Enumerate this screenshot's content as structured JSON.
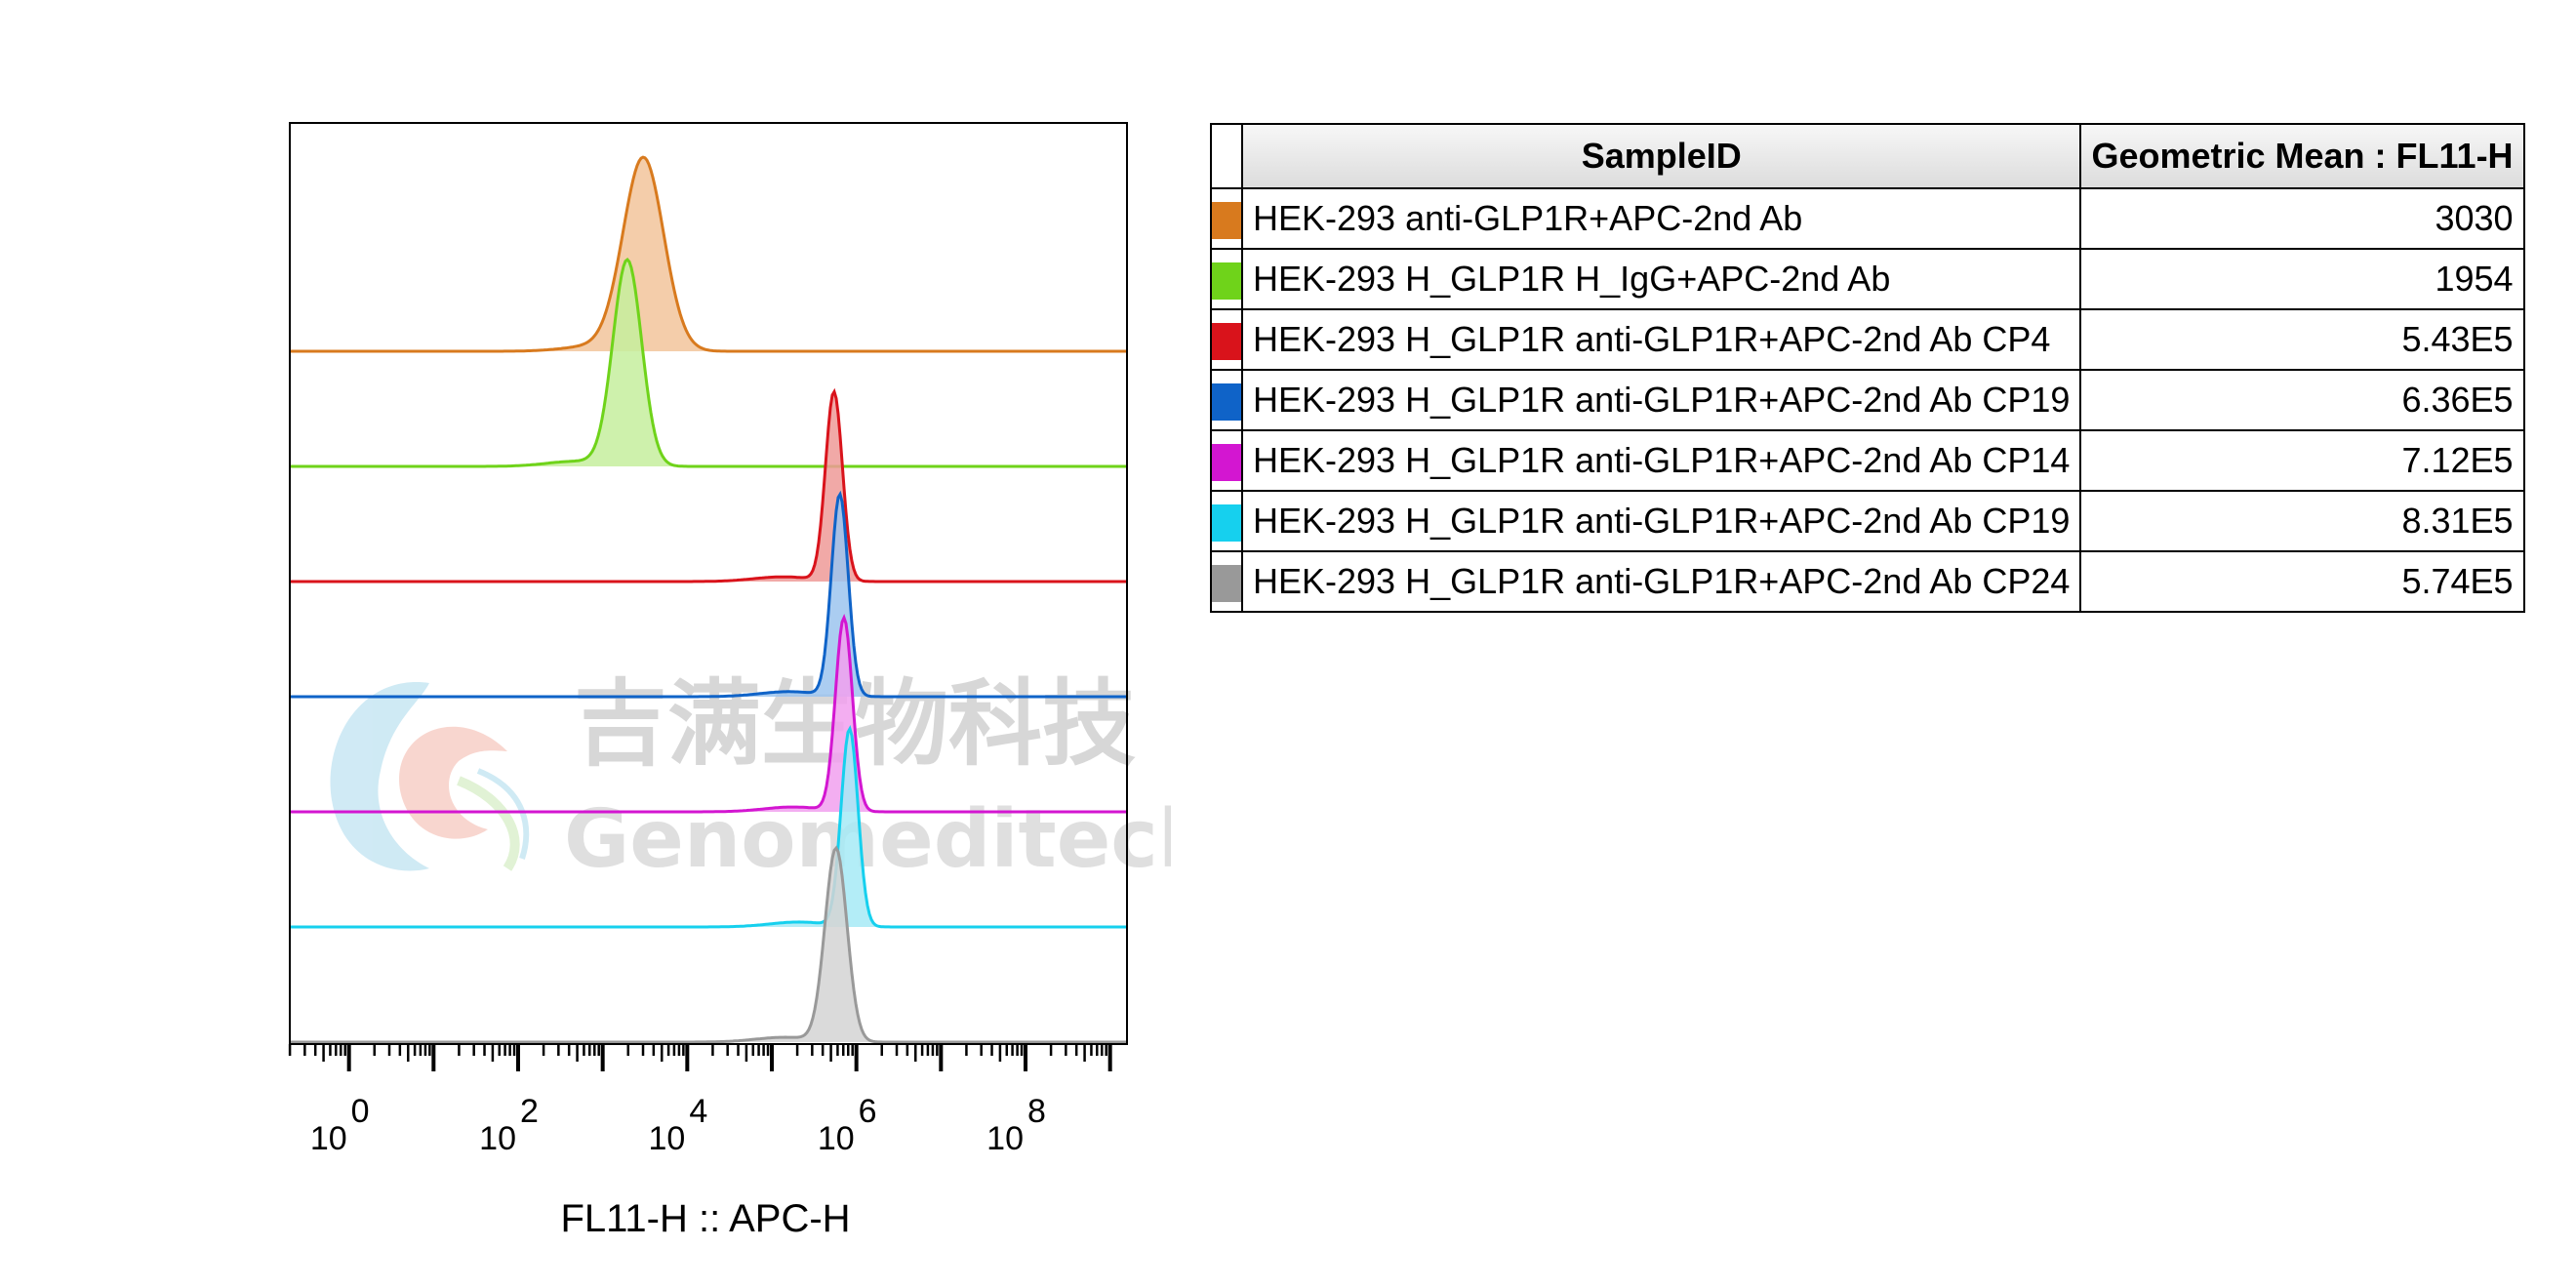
{
  "chart_data": {
    "type": "histogram",
    "xlabel": "FL11-H :: APC-H",
    "x_scale": "log",
    "x_ticks": [
      {
        "base": "10",
        "exp": "0",
        "value": 1
      },
      {
        "base": "10",
        "exp": "2",
        "value": 100
      },
      {
        "base": "10",
        "exp": "4",
        "value": 10000
      },
      {
        "base": "10",
        "exp": "6",
        "value": 1000000
      },
      {
        "base": "10",
        "exp": "8",
        "value": 100000000
      }
    ],
    "series": [
      {
        "name": "HEK-293 anti-GLP1R+APC-2nd Ab",
        "color": "#d87a1e",
        "fill": "#f2c49b",
        "peak": 3030,
        "spread": 0.24,
        "height": 0.92
      },
      {
        "name": "HEK-293 H_GLP1R H_IgG+APC-2nd Ab",
        "color": "#6fd31a",
        "fill": "#c6ef9e",
        "peak": 1954,
        "spread": 0.17,
        "height": 0.98
      },
      {
        "name": "HEK-293 H_GLP1R anti-GLP1R+APC-2nd Ab CP4",
        "color": "#d9131b",
        "fill": "#ee9a98",
        "peak": 543000,
        "spread": 0.1,
        "height": 0.9
      },
      {
        "name": "HEK-293 H_GLP1R anti-GLP1R+APC-2nd Ab CP19",
        "color": "#0f63c8",
        "fill": "#9cc4ee",
        "peak": 636000,
        "spread": 0.1,
        "height": 0.96
      },
      {
        "name": "HEK-293 H_GLP1R anti-GLP1R+APC-2nd Ab CP14",
        "color": "#d316d1",
        "fill": "#f1a0ef",
        "peak": 712000,
        "spread": 0.1,
        "height": 0.92
      },
      {
        "name": "HEK-293 H_GLP1R anti-GLP1R+APC-2nd Ab CP19",
        "color": "#16d0ee",
        "fill": "#a6eaf6",
        "peak": 831000,
        "spread": 0.1,
        "height": 0.94
      },
      {
        "name": "HEK-293 H_GLP1R anti-GLP1R+APC-2nd Ab CP24",
        "color": "#999999",
        "fill": "#d3d3d3",
        "peak": 574000,
        "spread": 0.13,
        "height": 0.92
      }
    ]
  },
  "table": {
    "header_sample": "SampleID",
    "header_value": "Geometric Mean : FL11-H",
    "rows": [
      {
        "color": "#d87a1e",
        "name": "HEK-293 anti-GLP1R+APC-2nd Ab",
        "value": "3030"
      },
      {
        "color": "#6fd31a",
        "name": "HEK-293 H_GLP1R H_IgG+APC-2nd Ab",
        "value": "1954"
      },
      {
        "color": "#d9131b",
        "name": "HEK-293 H_GLP1R anti-GLP1R+APC-2nd Ab CP4",
        "value": "5.43E5"
      },
      {
        "color": "#0f63c8",
        "name": "HEK-293 H_GLP1R anti-GLP1R+APC-2nd Ab CP19",
        "value": "6.36E5"
      },
      {
        "color": "#d316d1",
        "name": "HEK-293 H_GLP1R anti-GLP1R+APC-2nd Ab CP14",
        "value": "7.12E5"
      },
      {
        "color": "#16d0ee",
        "name": "HEK-293 H_GLP1R anti-GLP1R+APC-2nd Ab CP19",
        "value": "8.31E5"
      },
      {
        "color": "#999999",
        "name": "HEK-293 H_GLP1R anti-GLP1R+APC-2nd Ab CP24",
        "value": "5.74E5"
      }
    ]
  },
  "watermark": {
    "cn": "吉满生物科技",
    "en": "Genomeditech"
  }
}
